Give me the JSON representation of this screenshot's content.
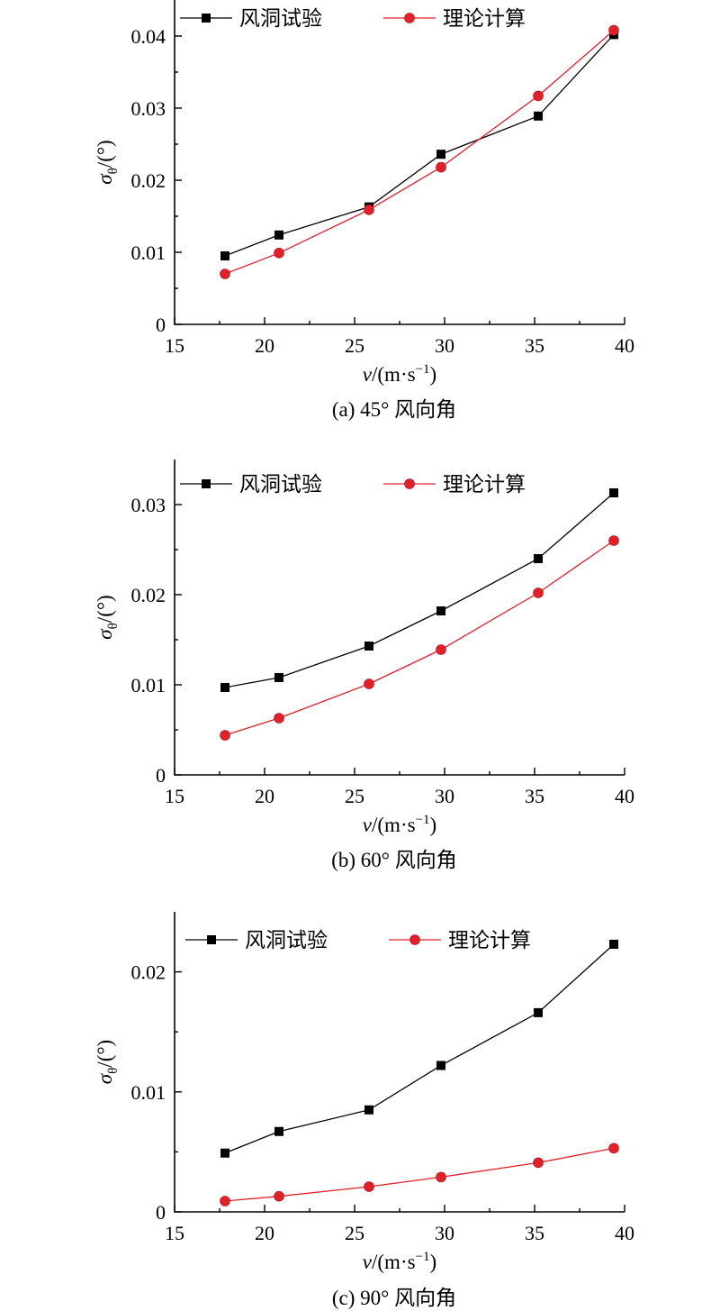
{
  "chart_data": [
    {
      "type": "line",
      "caption": "(a) 45° 风向角",
      "xlabel_var": "v",
      "xlabel_unit": "/(m·s",
      "xlabel_exp": "−1",
      "xlabel_close": ")",
      "ylabel_var": "σ",
      "ylabel_sub": "θ",
      "ylabel_unit": "/(°)",
      "xlim": [
        15,
        40
      ],
      "ylim": [
        0,
        0.045
      ],
      "xticks": [
        15,
        20,
        25,
        30,
        35,
        40
      ],
      "xtick_labels": [
        "15",
        "20",
        "25",
        "30",
        "35",
        "40"
      ],
      "yticks": [
        0,
        0.01,
        0.02,
        0.03,
        0.04
      ],
      "ytick_labels": [
        "0",
        "0.01",
        "0.02",
        "0.03",
        "0.04"
      ],
      "legend": "top-left",
      "grid": false,
      "series": [
        {
          "name": "风洞试验",
          "color": "#000000",
          "marker": "square",
          "x": [
            17.8,
            20.8,
            25.8,
            29.8,
            35.2,
            39.4
          ],
          "y": [
            0.0095,
            0.0124,
            0.0163,
            0.0236,
            0.0289,
            0.0402
          ]
        },
        {
          "name": "理论计算",
          "color": "#e0202a",
          "marker": "circle",
          "x": [
            17.8,
            20.8,
            25.8,
            29.8,
            35.2,
            39.4
          ],
          "y": [
            0.007,
            0.0099,
            0.0159,
            0.0218,
            0.0317,
            0.0408
          ]
        }
      ]
    },
    {
      "type": "line",
      "caption": "(b) 60° 风向角",
      "xlabel_var": "v",
      "xlabel_unit": "/(m·s",
      "xlabel_exp": "−1",
      "xlabel_close": ")",
      "ylabel_var": "σ",
      "ylabel_sub": "θ",
      "ylabel_unit": "/(°)",
      "xlim": [
        15,
        40
      ],
      "ylim": [
        0,
        0.035
      ],
      "xticks": [
        15,
        20,
        25,
        30,
        35,
        40
      ],
      "xtick_labels": [
        "15",
        "20",
        "25",
        "30",
        "35",
        "40"
      ],
      "yticks": [
        0,
        0.01,
        0.02,
        0.03
      ],
      "ytick_labels": [
        "0",
        "0.01",
        "0.02",
        "0.03"
      ],
      "legend": "top-left",
      "grid": false,
      "series": [
        {
          "name": "风洞试验",
          "color": "#000000",
          "marker": "square",
          "x": [
            17.8,
            20.8,
            25.8,
            29.8,
            35.2,
            39.4
          ],
          "y": [
            0.0097,
            0.0108,
            0.0143,
            0.0182,
            0.024,
            0.0313
          ]
        },
        {
          "name": "理论计算",
          "color": "#e0202a",
          "marker": "circle",
          "x": [
            17.8,
            20.8,
            25.8,
            29.8,
            35.2,
            39.4
          ],
          "y": [
            0.0044,
            0.0063,
            0.0101,
            0.0139,
            0.0202,
            0.026
          ]
        }
      ]
    },
    {
      "type": "line",
      "caption": "(c) 90° 风向角",
      "xlabel_var": "v",
      "xlabel_unit": "/(m·s",
      "xlabel_exp": "−1",
      "xlabel_close": ")",
      "ylabel_var": "σ",
      "ylabel_sub": "θ",
      "ylabel_unit": "/(°)",
      "xlim": [
        15,
        40
      ],
      "ylim": [
        0,
        0.025
      ],
      "xticks": [
        15,
        20,
        25,
        30,
        35,
        40
      ],
      "xtick_labels": [
        "15",
        "20",
        "25",
        "30",
        "35",
        "40"
      ],
      "yticks": [
        0,
        0.01,
        0.02
      ],
      "ytick_labels": [
        "0",
        "0.01",
        "0.02"
      ],
      "legend": "top-left",
      "grid": false,
      "series": [
        {
          "name": "风洞试验",
          "color": "#000000",
          "marker": "square",
          "x": [
            17.8,
            20.8,
            25.8,
            29.8,
            35.2,
            39.4
          ],
          "y": [
            0.0049,
            0.0067,
            0.0085,
            0.0122,
            0.0166,
            0.0223
          ]
        },
        {
          "name": "理论计算",
          "color": "#e0202a",
          "marker": "circle",
          "x": [
            17.8,
            20.8,
            25.8,
            29.8,
            35.2,
            39.4
          ],
          "y": [
            0.0009,
            0.0013,
            0.0021,
            0.0029,
            0.0041,
            0.0053
          ]
        }
      ]
    }
  ]
}
